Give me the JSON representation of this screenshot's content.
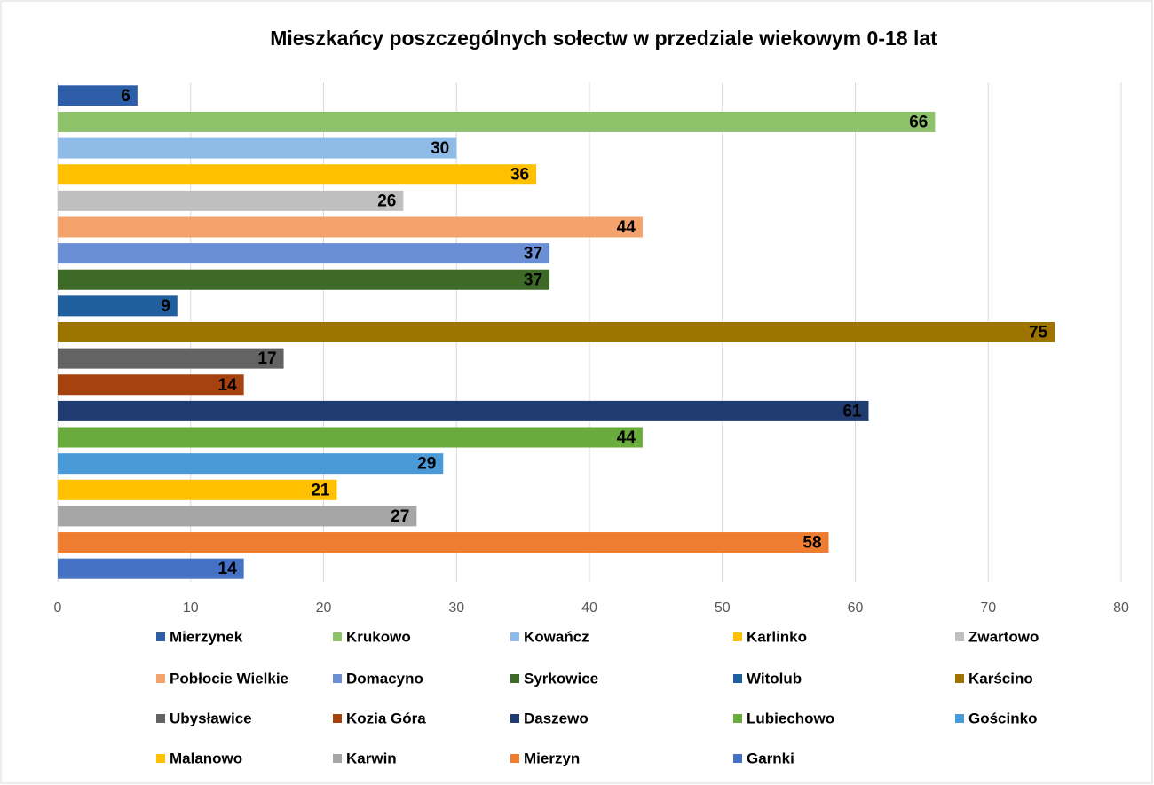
{
  "chart_data": {
    "type": "barh",
    "title": "Mieszkańcy poszczególnych sołectw w przedziale wiekowym 0-18 lat",
    "xlim": [
      0,
      80
    ],
    "xticks": [
      0,
      10,
      20,
      30,
      40,
      50,
      60,
      70,
      80
    ],
    "grid": true,
    "legend": "bottom",
    "series": [
      {
        "name": "Mierzynek",
        "color": "#2e5ea8",
        "values": [
          6
        ]
      },
      {
        "name": "Krukowo",
        "color": "#8dc26b",
        "values": [
          66
        ]
      },
      {
        "name": "Kowańcz",
        "color": "#8fbbe8",
        "values": [
          30
        ]
      },
      {
        "name": "Karlinko",
        "color": "#ffc000",
        "values": [
          36
        ]
      },
      {
        "name": "Zwartowo",
        "color": "#bfbfbf",
        "values": [
          26
        ]
      },
      {
        "name": "Pobłocie Wielkie",
        "color": "#f4a26b",
        "values": [
          44
        ]
      },
      {
        "name": "Domacyno",
        "color": "#6b8fd4",
        "values": [
          37
        ]
      },
      {
        "name": "Syrkowice",
        "color": "#3d6b27",
        "values": [
          37
        ]
      },
      {
        "name": "Witolub",
        "color": "#1f5f9e",
        "values": [
          9
        ]
      },
      {
        "name": "Karścino",
        "color": "#9e7400",
        "values": [
          75
        ]
      },
      {
        "name": "Ubysławice",
        "color": "#636363",
        "values": [
          17
        ]
      },
      {
        "name": "Kozia Góra",
        "color": "#a5420e",
        "values": [
          14
        ]
      },
      {
        "name": "Daszewo",
        "color": "#203b70",
        "values": [
          61
        ]
      },
      {
        "name": "Lubiechowo",
        "color": "#6aab3e",
        "values": [
          44
        ]
      },
      {
        "name": "Gościnko",
        "color": "#4a9ad8",
        "values": [
          29
        ]
      },
      {
        "name": "Malanowo",
        "color": "#ffc000",
        "values": [
          21
        ]
      },
      {
        "name": "Karwin",
        "color": "#a6a6a6",
        "values": [
          27
        ]
      },
      {
        "name": "Mierzyn",
        "color": "#ef7d31",
        "values": [
          58
        ]
      },
      {
        "name": "Garnki",
        "color": "#4472c4",
        "values": [
          14
        ]
      }
    ]
  }
}
